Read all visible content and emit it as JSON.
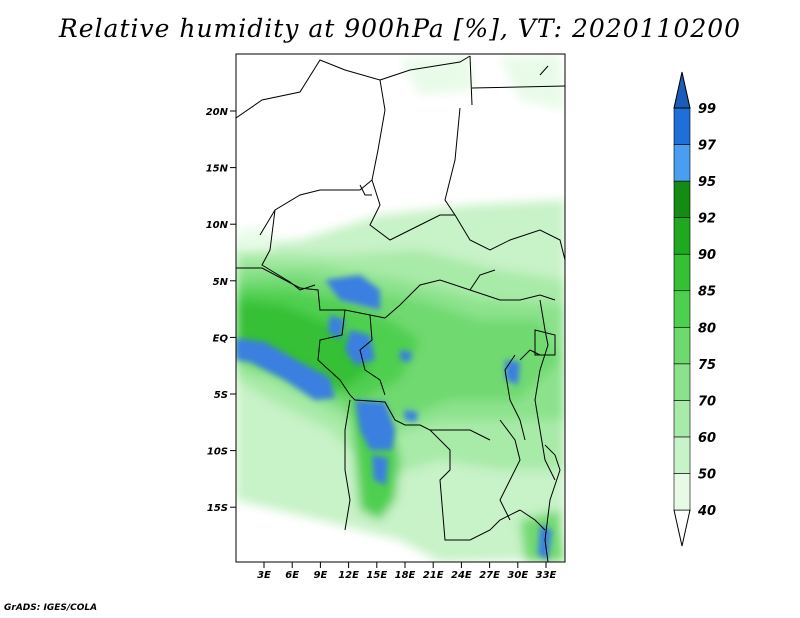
{
  "title": "Relative humidity at 900hPa [%], VT: 2020110200",
  "credit": "GrADS: IGES/COLA",
  "map": {
    "lon_ticks": [
      "3E",
      "6E",
      "9E",
      "12E",
      "15E",
      "18E",
      "21E",
      "24E",
      "27E",
      "30E",
      "33E"
    ],
    "lat_ticks": [
      "20N",
      "15N",
      "10N",
      "5N",
      "EQ",
      "5S",
      "10S",
      "15S"
    ]
  },
  "colorbar": {
    "levels": [
      "40",
      "50",
      "60",
      "70",
      "75",
      "80",
      "85",
      "90",
      "92",
      "95",
      "97",
      "99"
    ],
    "colors": [
      "#ffffff",
      "#e6fae6",
      "#c8f2c8",
      "#a8eaa8",
      "#8ce28c",
      "#6fd96f",
      "#4fcf4f",
      "#36c036",
      "#20a820",
      "#148c14",
      "#4a9ef0",
      "#1e6fd8",
      "#1a5cb8"
    ]
  },
  "colors": {
    "land_border": "#000000",
    "water_blue": "#3b7fe0"
  }
}
